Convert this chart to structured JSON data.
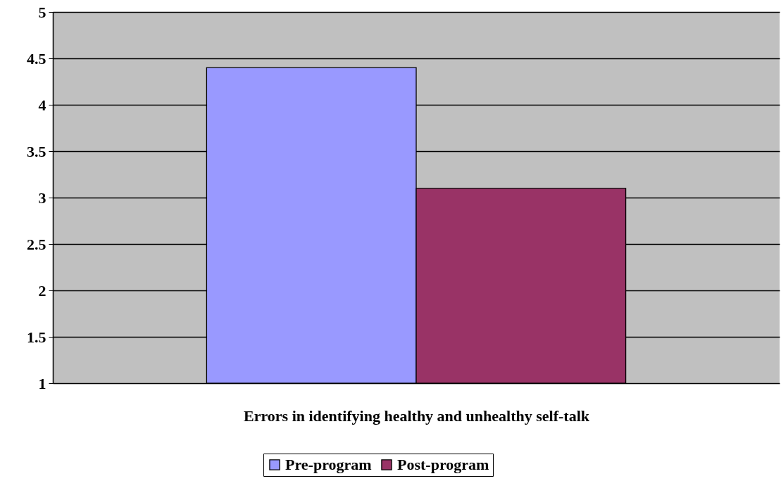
{
  "chart_data": {
    "type": "bar",
    "xlabel": "Errors in identifying healthy and unhealthy self-talk",
    "categories": [
      null
    ],
    "series": [
      {
        "name": "Pre-program",
        "color": "#9999ff",
        "values": [
          4.4
        ]
      },
      {
        "name": "Post-program",
        "color": "#993366",
        "values": [
          3.1
        ]
      }
    ],
    "ylim": [
      1,
      5
    ],
    "yticks": [
      1,
      1.5,
      2,
      2.5,
      3,
      3.5,
      4,
      4.5,
      5
    ],
    "grid": "y",
    "legend": "bottom"
  }
}
